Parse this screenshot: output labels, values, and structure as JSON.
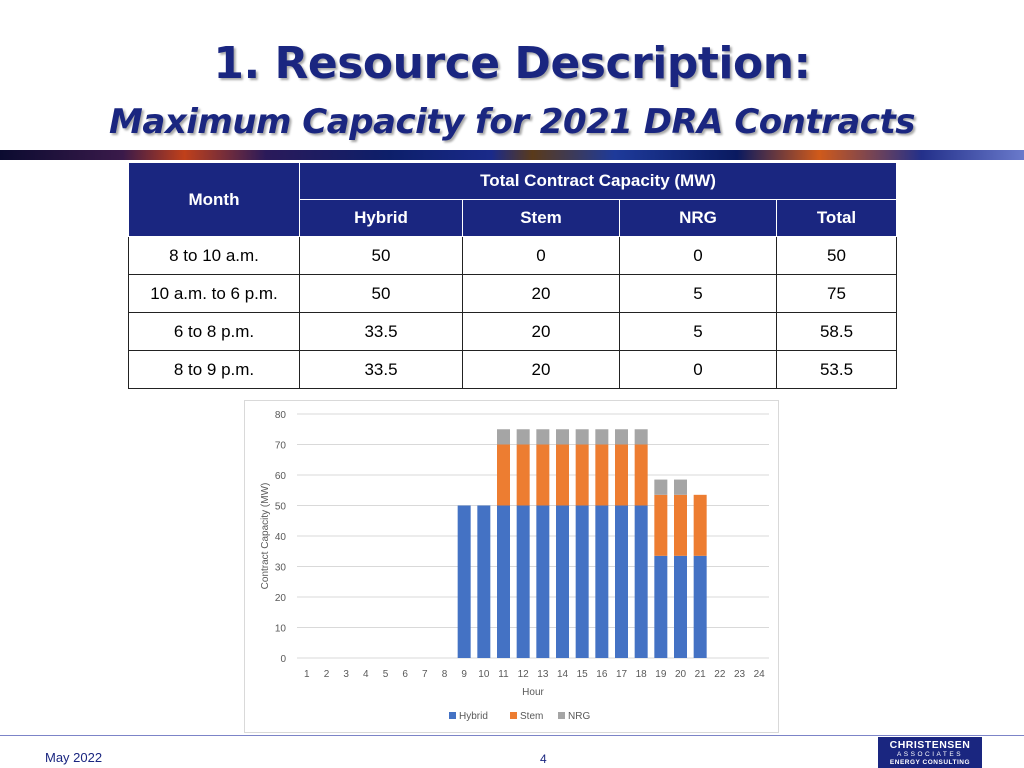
{
  "slide": {
    "title": "1. Resource Description:",
    "subtitle": "Maximum Capacity for 2021 DRA Contracts"
  },
  "table": {
    "month_header": "Month",
    "group_header": "Total Contract Capacity (MW)",
    "columns": [
      "Hybrid",
      "Stem",
      "NRG",
      "Total"
    ],
    "rows": [
      {
        "month": "8 to 10 a.m.",
        "values": [
          "50",
          "0",
          "0",
          "50"
        ]
      },
      {
        "month": "10 a.m. to 6 p.m.",
        "values": [
          "50",
          "20",
          "5",
          "75"
        ]
      },
      {
        "month": "6 to 8 p.m.",
        "values": [
          "33.5",
          "20",
          "5",
          "58.5"
        ]
      },
      {
        "month": "8 to 9 p.m.",
        "values": [
          "33.5",
          "20",
          "0",
          "53.5"
        ]
      }
    ]
  },
  "chart_data": {
    "type": "bar",
    "stacked": true,
    "categories": [
      "1",
      "2",
      "3",
      "4",
      "5",
      "6",
      "7",
      "8",
      "9",
      "10",
      "11",
      "12",
      "13",
      "14",
      "15",
      "16",
      "17",
      "18",
      "19",
      "20",
      "21",
      "22",
      "23",
      "24"
    ],
    "series": [
      {
        "name": "Hybrid",
        "color": "#4472c4",
        "values": [
          0,
          0,
          0,
          0,
          0,
          0,
          0,
          0,
          50,
          50,
          50,
          50,
          50,
          50,
          50,
          50,
          50,
          50,
          33.5,
          33.5,
          33.5,
          0,
          0,
          0
        ]
      },
      {
        "name": "Stem",
        "color": "#ed7d31",
        "values": [
          0,
          0,
          0,
          0,
          0,
          0,
          0,
          0,
          0,
          0,
          20,
          20,
          20,
          20,
          20,
          20,
          20,
          20,
          20,
          20,
          20,
          0,
          0,
          0
        ]
      },
      {
        "name": "NRG",
        "color": "#a5a5a5",
        "values": [
          0,
          0,
          0,
          0,
          0,
          0,
          0,
          0,
          0,
          0,
          5,
          5,
          5,
          5,
          5,
          5,
          5,
          5,
          5,
          5,
          0,
          0,
          0,
          0
        ]
      }
    ],
    "xlabel": "Hour",
    "ylabel": "Contract Capacity (MW)",
    "ylim": [
      0,
      80
    ],
    "yticks": [
      "0",
      "10",
      "20",
      "30",
      "40",
      "50",
      "60",
      "70",
      "80"
    ],
    "grid": true,
    "legend": "bottom"
  },
  "footer": {
    "date": "May 2022",
    "page": "4",
    "logo_line1": "CHRISTENSEN",
    "logo_line2": "ASSOCIATES",
    "logo_line3": "ENERGY CONSULTING"
  }
}
